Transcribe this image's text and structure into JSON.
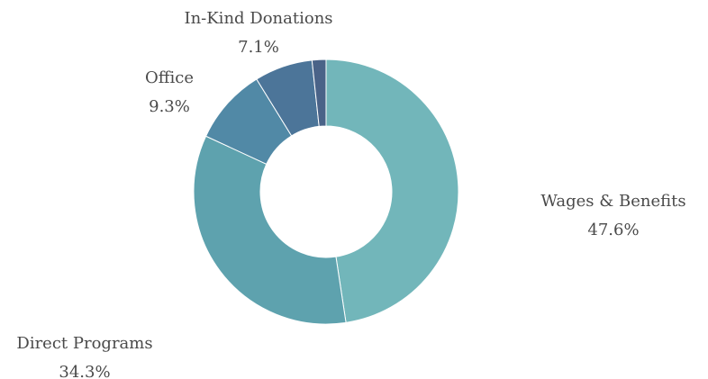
{
  "chart_data": {
    "type": "pie",
    "donut": true,
    "legend": "none",
    "slices": [
      {
        "label": "Wages & Benefits",
        "value": 47.6,
        "value_label": "47.6%",
        "color": "#72b6ba"
      },
      {
        "label": "Direct Programs",
        "value": 34.3,
        "value_label": "34.3%",
        "color": "#5ea2ae"
      },
      {
        "label": "Office",
        "value": 9.3,
        "value_label": "9.3%",
        "color": "#5189a6"
      },
      {
        "label": "In-Kind Donations",
        "value": 7.1,
        "value_label": "7.1%",
        "color": "#4c7599"
      },
      {
        "label": "",
        "value": 1.7,
        "value_label": "",
        "color": "#4a6388"
      }
    ]
  }
}
